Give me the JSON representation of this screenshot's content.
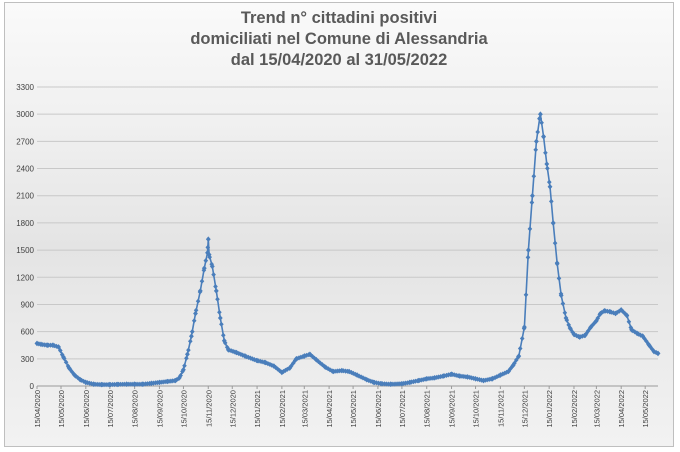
{
  "chart_data": {
    "type": "line",
    "title_lines": [
      "Trend n° cittadini positivi",
      "domiciliati nel Comune di Alessandria",
      "dal 15/04/2020 al 31/05/2022"
    ],
    "xlabel": "",
    "ylabel": "",
    "ylim": [
      0,
      3300
    ],
    "yticks": [
      0,
      300,
      600,
      900,
      1200,
      1500,
      1800,
      2100,
      2400,
      2700,
      3000,
      3300
    ],
    "grid": true,
    "legend": "none",
    "x_range": [
      "2020-04-15",
      "2022-05-31"
    ],
    "x_tick_labels": [
      "15/04/2020",
      "15/05/2020",
      "15/06/2020",
      "15/07/2020",
      "15/08/2020",
      "15/09/2020",
      "15/10/2020",
      "15/11/2020",
      "15/12/2020",
      "15/01/2021",
      "15/02/2021",
      "15/03/2021",
      "15/04/2021",
      "15/05/2021",
      "15/06/2021",
      "15/07/2021",
      "15/08/2021",
      "15/09/2021",
      "15/10/2021",
      "15/11/2021",
      "15/12/2021",
      "15/01/2022",
      "15/02/2022",
      "15/03/2022",
      "15/04/2022",
      "15/05/2022"
    ],
    "series": [
      {
        "color": "#4a7ebb",
        "points": [
          [
            "2020-04-15",
            470
          ],
          [
            "2020-04-20",
            460
          ],
          [
            "2020-04-28",
            450
          ],
          [
            "2020-05-05",
            450
          ],
          [
            "2020-05-12",
            430
          ],
          [
            "2020-05-18",
            320
          ],
          [
            "2020-05-25",
            200
          ],
          [
            "2020-06-01",
            120
          ],
          [
            "2020-06-08",
            70
          ],
          [
            "2020-06-15",
            40
          ],
          [
            "2020-06-25",
            20
          ],
          [
            "2020-07-05",
            15
          ],
          [
            "2020-07-15",
            15
          ],
          [
            "2020-07-25",
            18
          ],
          [
            "2020-08-05",
            20
          ],
          [
            "2020-08-15",
            20
          ],
          [
            "2020-08-25",
            20
          ],
          [
            "2020-09-05",
            30
          ],
          [
            "2020-09-15",
            40
          ],
          [
            "2020-09-25",
            50
          ],
          [
            "2020-10-05",
            60
          ],
          [
            "2020-10-10",
            90
          ],
          [
            "2020-10-15",
            180
          ],
          [
            "2020-10-20",
            350
          ],
          [
            "2020-10-25",
            550
          ],
          [
            "2020-10-30",
            800
          ],
          [
            "2020-11-05",
            1050
          ],
          [
            "2020-11-10",
            1300
          ],
          [
            "2020-11-14",
            1470
          ],
          [
            "2020-11-15",
            1620
          ],
          [
            "2020-11-16",
            1450
          ],
          [
            "2020-11-20",
            1320
          ],
          [
            "2020-11-25",
            1050
          ],
          [
            "2020-11-30",
            750
          ],
          [
            "2020-12-05",
            500
          ],
          [
            "2020-12-10",
            400
          ],
          [
            "2020-12-20",
            370
          ],
          [
            "2020-12-31",
            330
          ],
          [
            "2021-01-15",
            280
          ],
          [
            "2021-01-25",
            260
          ],
          [
            "2021-02-05",
            220
          ],
          [
            "2021-02-15",
            150
          ],
          [
            "2021-02-25",
            200
          ],
          [
            "2021-03-05",
            300
          ],
          [
            "2021-03-15",
            330
          ],
          [
            "2021-03-22",
            350
          ],
          [
            "2021-03-30",
            290
          ],
          [
            "2021-04-10",
            210
          ],
          [
            "2021-04-20",
            160
          ],
          [
            "2021-05-01",
            170
          ],
          [
            "2021-05-10",
            160
          ],
          [
            "2021-05-20",
            120
          ],
          [
            "2021-06-01",
            70
          ],
          [
            "2021-06-10",
            40
          ],
          [
            "2021-06-20",
            25
          ],
          [
            "2021-07-01",
            20
          ],
          [
            "2021-07-15",
            25
          ],
          [
            "2021-07-25",
            40
          ],
          [
            "2021-08-05",
            60
          ],
          [
            "2021-08-15",
            80
          ],
          [
            "2021-08-25",
            90
          ],
          [
            "2021-09-05",
            110
          ],
          [
            "2021-09-15",
            130
          ],
          [
            "2021-09-25",
            110
          ],
          [
            "2021-10-05",
            100
          ],
          [
            "2021-10-15",
            80
          ],
          [
            "2021-10-25",
            60
          ],
          [
            "2021-11-05",
            80
          ],
          [
            "2021-11-15",
            120
          ],
          [
            "2021-11-25",
            160
          ],
          [
            "2021-12-01",
            230
          ],
          [
            "2021-12-08",
            330
          ],
          [
            "2021-12-15",
            650
          ],
          [
            "2021-12-20",
            1500
          ],
          [
            "2021-12-25",
            2100
          ],
          [
            "2021-12-30",
            2700
          ],
          [
            "2022-01-03",
            2950
          ],
          [
            "2022-01-04",
            3000
          ],
          [
            "2022-01-08",
            2750
          ],
          [
            "2022-01-12",
            2450
          ],
          [
            "2022-01-16",
            2200
          ],
          [
            "2022-01-20",
            1800
          ],
          [
            "2022-01-25",
            1350
          ],
          [
            "2022-01-30",
            1000
          ],
          [
            "2022-02-05",
            750
          ],
          [
            "2022-02-10",
            640
          ],
          [
            "2022-02-15",
            570
          ],
          [
            "2022-02-22",
            540
          ],
          [
            "2022-03-01",
            560
          ],
          [
            "2022-03-08",
            650
          ],
          [
            "2022-03-15",
            720
          ],
          [
            "2022-03-20",
            800
          ],
          [
            "2022-03-25",
            830
          ],
          [
            "2022-04-01",
            820
          ],
          [
            "2022-04-08",
            800
          ],
          [
            "2022-04-15",
            840
          ],
          [
            "2022-04-22",
            780
          ],
          [
            "2022-04-28",
            620
          ],
          [
            "2022-05-05",
            580
          ],
          [
            "2022-05-12",
            550
          ],
          [
            "2022-05-20",
            450
          ],
          [
            "2022-05-26",
            380
          ],
          [
            "2022-05-31",
            360
          ]
        ]
      }
    ]
  }
}
